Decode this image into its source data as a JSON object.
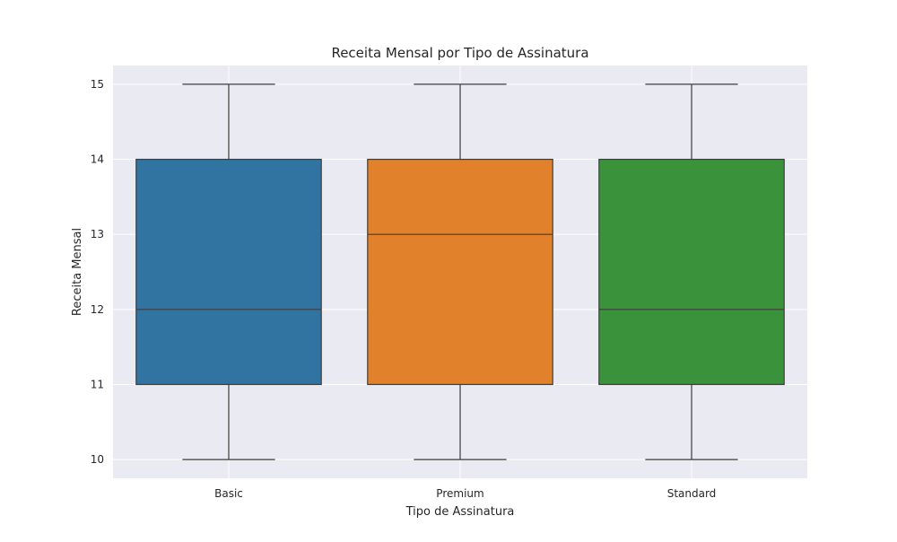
{
  "chart_data": {
    "type": "box",
    "title": "Receita Mensal por Tipo de Assinatura",
    "xlabel": "Tipo de Assinatura",
    "ylabel": "Receita Mensal",
    "categories": [
      "Basic",
      "Premium",
      "Standard"
    ],
    "boxes": [
      {
        "category": "Basic",
        "min": 10,
        "q1": 11,
        "median": 12,
        "q3": 14,
        "max": 15,
        "color": "#3274a1"
      },
      {
        "category": "Premium",
        "min": 10,
        "q1": 11,
        "median": 13,
        "q3": 14,
        "max": 15,
        "color": "#e1812c"
      },
      {
        "category": "Standard",
        "min": 10,
        "q1": 11,
        "median": 12,
        "q3": 14,
        "max": 15,
        "color": "#3a923a"
      }
    ],
    "ylim": [
      9.75,
      15.25
    ],
    "yticks": [
      10,
      11,
      12,
      13,
      14,
      15
    ],
    "grid": true,
    "colors": {
      "plot_background": "#eaeaf2",
      "grid": "#ffffff",
      "box_edge": "#3d3d3d"
    }
  }
}
